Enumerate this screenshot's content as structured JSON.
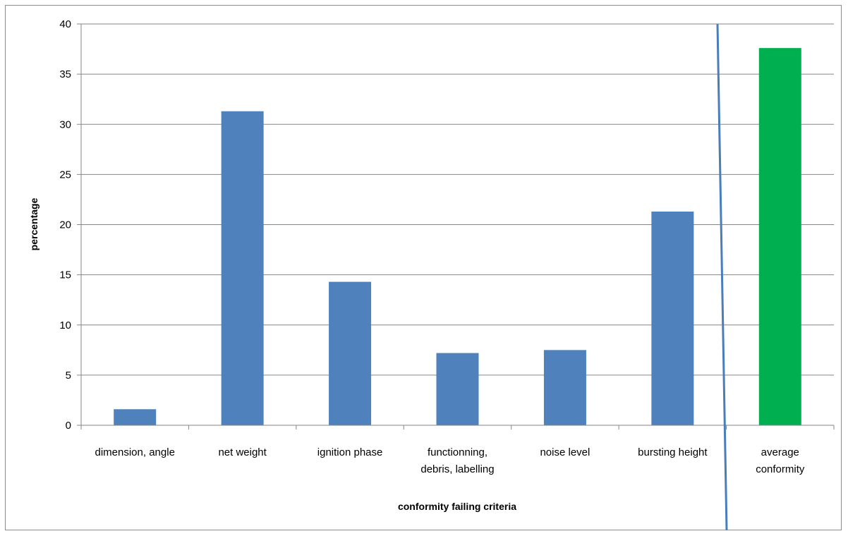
{
  "chart_data": {
    "type": "bar",
    "title": "",
    "xlabel": "conformity failing criteria",
    "ylabel": "percentage",
    "ylim": [
      0,
      40
    ],
    "yticks": [
      0,
      5,
      10,
      15,
      20,
      25,
      30,
      35,
      40
    ],
    "categories": [
      [
        "dimension, angle"
      ],
      [
        "net weight"
      ],
      [
        "ignition phase"
      ],
      [
        "functionning,",
        "debris, labelling"
      ],
      [
        "noise level"
      ],
      [
        "bursting height"
      ],
      [
        "average",
        "conformity"
      ]
    ],
    "values": [
      1.6,
      31.3,
      14.3,
      7.2,
      7.5,
      21.3,
      37.6
    ],
    "bar_colors": [
      "#4f81bd",
      "#4f81bd",
      "#4f81bd",
      "#4f81bd",
      "#4f81bd",
      "#4f81bd",
      "#00b050"
    ],
    "grid": true,
    "separator_line_color": "#4a7ebb"
  }
}
